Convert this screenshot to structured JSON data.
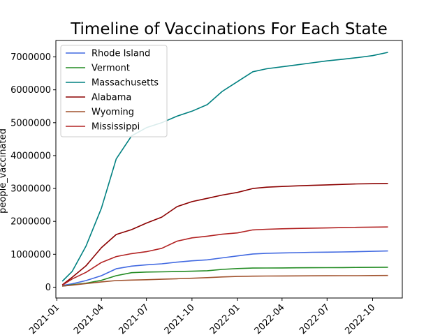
{
  "chart_data": {
    "type": "line",
    "title": "Timeline of Vaccinations For Each State",
    "xlabel": "",
    "ylabel": "people_vaccinated",
    "x": [
      "2021-01-12",
      "2021-02-01",
      "2021-03-01",
      "2021-04-01",
      "2021-05-01",
      "2021-06-01",
      "2021-07-01",
      "2021-08-01",
      "2021-09-01",
      "2021-10-01",
      "2021-11-01",
      "2021-12-01",
      "2022-01-01",
      "2022-02-01",
      "2022-03-01",
      "2022-04-01",
      "2022-05-01",
      "2022-06-01",
      "2022-07-01",
      "2022-08-01",
      "2022-09-01",
      "2022-10-01",
      "2022-11-01"
    ],
    "x_ticks": [
      "2021-01",
      "2021-04",
      "2021-07",
      "2021-10",
      "2022-01",
      "2022-04",
      "2022-07",
      "2022-10"
    ],
    "y_ticks": [
      "0",
      "1000000",
      "2000000",
      "3000000",
      "4000000",
      "5000000",
      "6000000",
      "7000000"
    ],
    "xlim": [
      "2020-12-30",
      "2022-11-30"
    ],
    "ylim": [
      -330000,
      7500000
    ],
    "grid": false,
    "legend_position": "top-left",
    "series": [
      {
        "name": "Rhode Island",
        "color": "#4169e1",
        "values": [
          50000,
          100000,
          200000,
          350000,
          560000,
          640000,
          680000,
          710000,
          760000,
          800000,
          830000,
          890000,
          950000,
          1010000,
          1030000,
          1040000,
          1050000,
          1060000,
          1065000,
          1070000,
          1080000,
          1090000,
          1100000
        ]
      },
      {
        "name": "Vermont",
        "color": "#228b22",
        "values": [
          30000,
          70000,
          120000,
          210000,
          350000,
          440000,
          460000,
          465000,
          475000,
          485000,
          500000,
          540000,
          565000,
          580000,
          582000,
          585000,
          588000,
          590000,
          592000,
          595000,
          600000,
          602000,
          605000
        ]
      },
      {
        "name": "Massachusetts",
        "color": "#008080",
        "values": [
          180000,
          480000,
          1250000,
          2400000,
          3900000,
          4600000,
          4850000,
          5000000,
          5200000,
          5350000,
          5550000,
          5950000,
          6250000,
          6550000,
          6640000,
          6700000,
          6760000,
          6820000,
          6880000,
          6930000,
          6980000,
          7040000,
          7140000
        ]
      },
      {
        "name": "Alabama",
        "color": "#8b0000",
        "values": [
          70000,
          300000,
          650000,
          1200000,
          1600000,
          1750000,
          1950000,
          2130000,
          2450000,
          2600000,
          2700000,
          2800000,
          2880000,
          3000000,
          3040000,
          3060000,
          3080000,
          3095000,
          3110000,
          3125000,
          3140000,
          3145000,
          3155000
        ]
      },
      {
        "name": "Wyoming",
        "color": "#a0522d",
        "values": [
          30000,
          60000,
          110000,
          160000,
          200000,
          215000,
          225000,
          240000,
          255000,
          270000,
          290000,
          310000,
          325000,
          335000,
          338000,
          340000,
          342000,
          344000,
          346000,
          348000,
          350000,
          353000,
          355000
        ]
      },
      {
        "name": "Mississippi",
        "color": "#b22222",
        "values": [
          60000,
          250000,
          450000,
          750000,
          930000,
          1020000,
          1080000,
          1180000,
          1400000,
          1500000,
          1550000,
          1610000,
          1650000,
          1740000,
          1760000,
          1775000,
          1785000,
          1795000,
          1800000,
          1810000,
          1820000,
          1825000,
          1830000
        ]
      }
    ]
  }
}
